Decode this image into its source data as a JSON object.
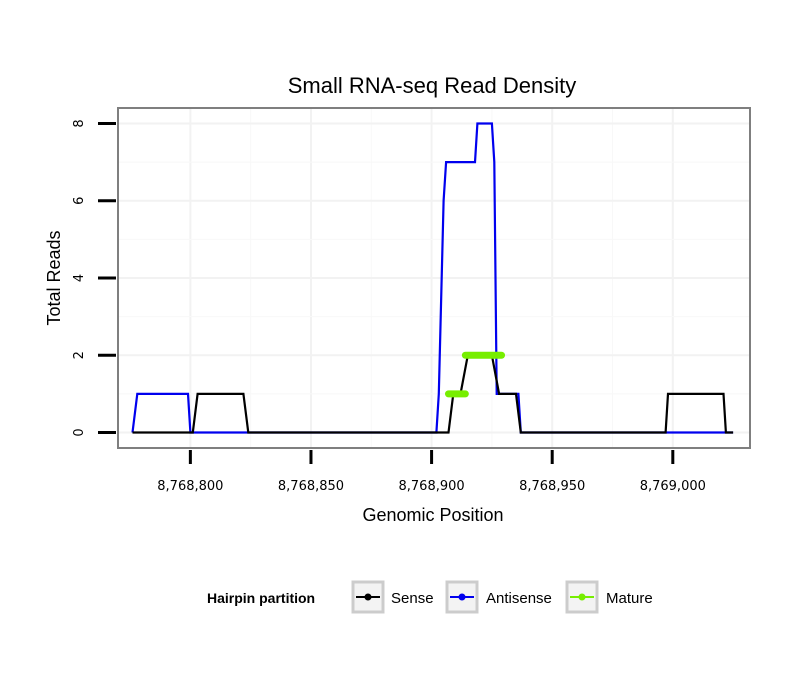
{
  "chart_data": {
    "type": "line",
    "title": "Small RNA-seq Read Density",
    "xlabel": "Genomic Position",
    "ylabel": "Total Reads",
    "xlim": [
      8768770,
      8769032
    ],
    "ylim": [
      -0.4,
      8.4
    ],
    "x_ticks": [
      8768800,
      8768850,
      8768900,
      8768950,
      8769000
    ],
    "x_tick_labels": [
      "8,768,800",
      "8,768,850",
      "8,768,900",
      "8,768,950",
      "8,769,000"
    ],
    "y_ticks": [
      0,
      2,
      4,
      6,
      8
    ],
    "y_tick_labels": [
      "0",
      "2",
      "4",
      "6",
      "8"
    ],
    "grid": true,
    "legend": {
      "title": "Hairpin partition",
      "position": "bottom",
      "entries": [
        "Sense",
        "Antisense",
        "Mature"
      ]
    },
    "series": [
      {
        "name": "Sense",
        "color": "#000000",
        "x": [
          8768776,
          8768801,
          8768803,
          8768822,
          8768824,
          8768907,
          8768909,
          8768912,
          8768915,
          8768925,
          8768928,
          8768935,
          8768937,
          8768997,
          8768998,
          8769021,
          8769022,
          8769025
        ],
        "y": [
          0,
          0,
          1,
          1,
          0,
          0,
          1,
          1,
          2,
          2,
          1,
          1,
          0,
          0,
          1,
          1,
          0,
          0
        ]
      },
      {
        "name": "Antisense",
        "color": "#0000ee",
        "x": [
          8768776,
          8768778,
          8768799,
          8768800,
          8768902,
          8768903,
          8768905,
          8768906,
          8768918,
          8768919,
          8768925,
          8768926,
          8768927,
          8768936,
          8768937,
          8769025
        ],
        "y": [
          0,
          1,
          1,
          0,
          0,
          1,
          6,
          7,
          7,
          8,
          8,
          7,
          1,
          1,
          0,
          0
        ]
      },
      {
        "name": "Mature",
        "color": "#77ee00",
        "segments": [
          {
            "x": [
              8768907,
              8768914
            ],
            "y": 1
          },
          {
            "x": [
              8768914,
              8768929
            ],
            "y": 2
          }
        ]
      }
    ]
  }
}
